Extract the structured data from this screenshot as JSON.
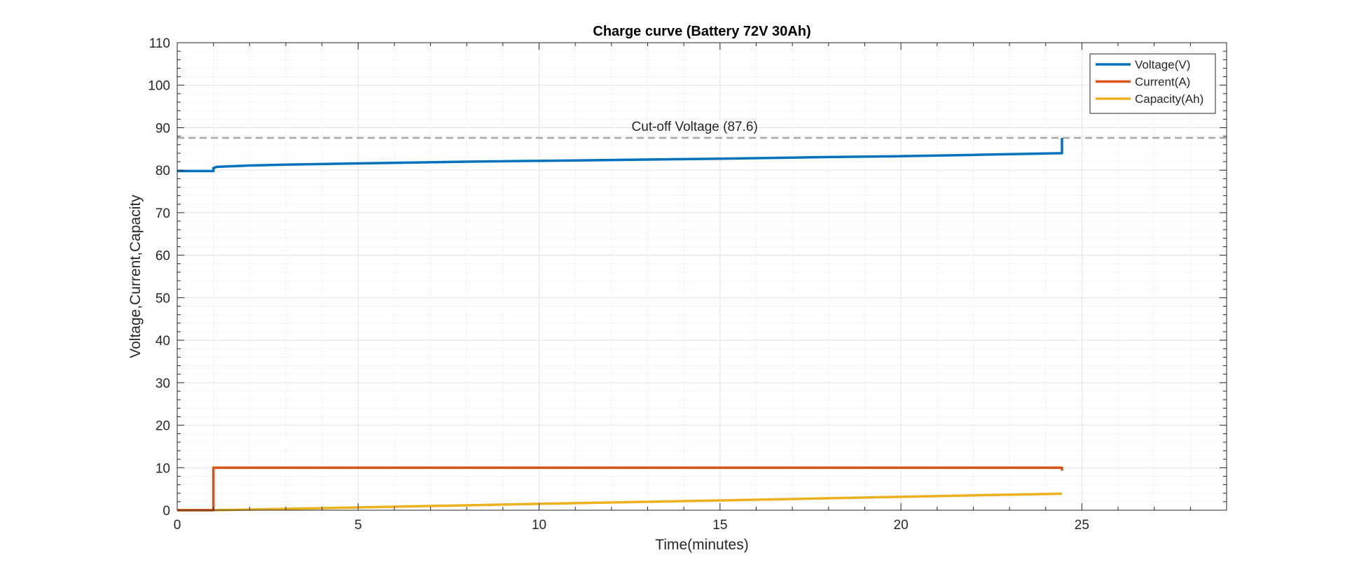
{
  "chart_data": {
    "type": "line",
    "title": "Charge curve (Battery 72V 30Ah)",
    "xlabel": "Time(minutes)",
    "ylabel": "Voltage,Current,Capacity",
    "xlim": [
      0,
      29
    ],
    "ylim": [
      0,
      110
    ],
    "x_ticks": [
      "0",
      "5",
      "10",
      "15",
      "20",
      "25"
    ],
    "y_ticks": [
      "0",
      "10",
      "20",
      "30",
      "40",
      "50",
      "60",
      "70",
      "80",
      "90",
      "100",
      "110"
    ],
    "grid": true,
    "minor_grid": true,
    "legend_position": "top-right",
    "series": [
      {
        "name": "Voltage(V)",
        "color": "#0072BD",
        "x": [
          0,
          1.0,
          1.0,
          1.1,
          2,
          3,
          5,
          8,
          10,
          12,
          15,
          18,
          20,
          22,
          24.45,
          24.45
        ],
        "y": [
          79.8,
          79.8,
          80.5,
          80.8,
          81.1,
          81.3,
          81.6,
          82.0,
          82.2,
          82.4,
          82.7,
          83.1,
          83.3,
          83.6,
          84.0,
          87.6
        ]
      },
      {
        "name": "Current(A)",
        "color": "#D95319",
        "x": [
          0,
          1.0,
          1.0,
          24.45,
          24.45
        ],
        "y": [
          0,
          0,
          10,
          10,
          9.3
        ]
      },
      {
        "name": "Capacity(Ah)",
        "color": "#EDB120",
        "x": [
          0,
          1.0,
          5,
          10,
          15,
          20,
          24.45
        ],
        "y": [
          0,
          0,
          0.65,
          1.5,
          2.3,
          3.15,
          3.9
        ]
      }
    ],
    "annotations": [
      {
        "text": "Cut-off Voltage (87.6)",
        "value": 87.6,
        "style": "dashed",
        "color": "#A6A6A6",
        "label_x": 14.3
      }
    ]
  }
}
